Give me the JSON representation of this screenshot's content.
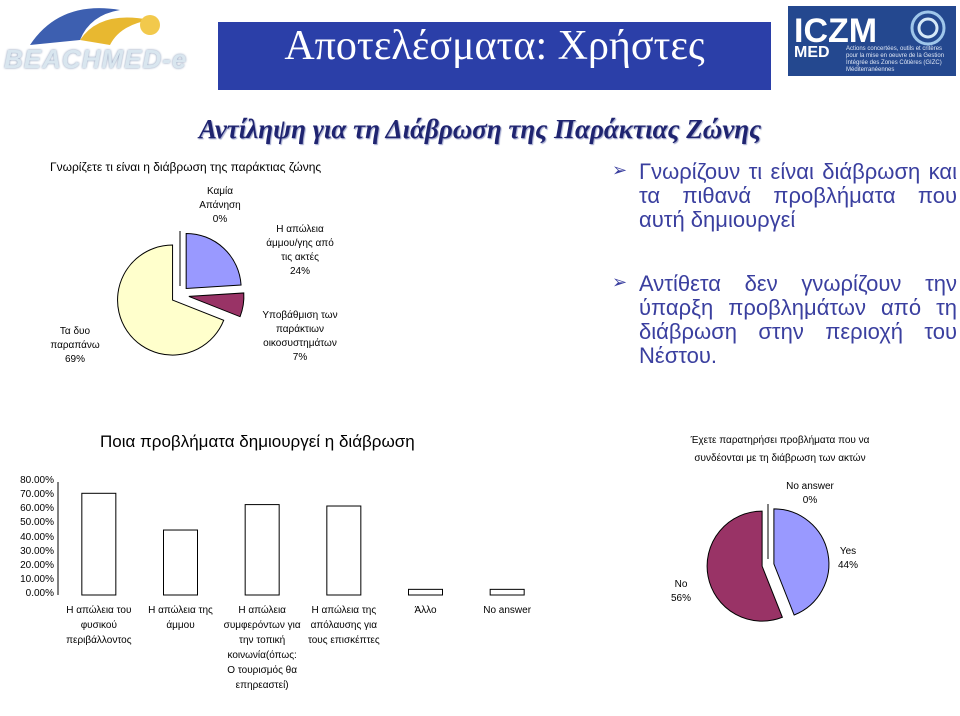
{
  "header": {
    "left_logo_text": "BEACHMED-e",
    "title": "Αποτελέσματα: Χρήστες",
    "right_logo_text": "ICZM",
    "right_logo_sub": "MED",
    "right_logo_caption": "Actions concertées, outils et critères pour la mise en oeuvre de la Gestion Intégrée des Zones Côtières (GIZC) Méditerranéennes"
  },
  "subtitle": "Αντίληψη για τη Διάβρωση της Παράκτιας Ζώνης",
  "pie1": {
    "title": "Γνωρίζετε τι είναι η διάβρωση της παράκτιας ζώνης",
    "labels": {
      "none": [
        "Καμία",
        "Απάνηση",
        "0%"
      ],
      "sand": [
        "Η απώλεια",
        "άμμου/γης από",
        "τις ακτές",
        "24%"
      ],
      "eco": [
        "Υποβάθμιση των",
        "παράκτιων",
        "οικοσυστημάτων",
        "7%"
      ],
      "both": [
        "Τα δυο",
        "παραπάνω",
        "69%"
      ]
    }
  },
  "bullets": [
    "Γνωρίζουν τι είναι διάβρωση και τα πιθανά προβλήματα που αυτή δημιουργεί",
    "Αντίθετα δεν γνωρίζουν την ύπαρξη προβλημάτων από τη διάβρωση στην περιοχή του Νέστου."
  ],
  "chart_data": [
    {
      "type": "pie",
      "title": "Γνωρίζετε τι είναι η διάβρωση της παράκτιας ζώνης",
      "categories": [
        "Καμία Απάνηση",
        "Η απώλεια άμμου/γης από τις ακτές",
        "Υποβάθμιση των παράκτιων οικοσυστημάτων",
        "Τα δυο παραπάνω"
      ],
      "values": [
        0,
        24,
        7,
        69
      ],
      "colors": [
        "#ffffff",
        "#9999ff",
        "#993366",
        "#ffffcc"
      ]
    },
    {
      "type": "bar",
      "title": "Ποια προβλήματα δημιουργεί η διάβρωση",
      "categories": [
        [
          "Η απώλεια του",
          "φυσικού",
          "περιβάλλοντος"
        ],
        [
          "Η απώλεια της",
          "άμμου"
        ],
        [
          "Η απώλεια",
          "συμφερόντων για",
          "την τοπική",
          "κοινωνία(όπως:",
          "Ο τουρισμός θα",
          "επηρεαστεί)"
        ],
        [
          "Η απώλεια της",
          "απόλαυσης για",
          "τους επισκέπτες"
        ],
        [
          "Άλλο"
        ],
        [
          "No answer"
        ]
      ],
      "values": [
        0.72,
        0.46,
        0.64,
        0.63,
        0.04,
        0.04
      ],
      "ylim": [
        0,
        0.8
      ],
      "yticks": [
        "0.00%",
        "10.00%",
        "20.00%",
        "30.00%",
        "40.00%",
        "50.00%",
        "60.00%",
        "70.00%",
        "80.00%"
      ],
      "color": "#ffffff"
    },
    {
      "type": "pie",
      "title": [
        "Έχετε παρατηρήσει προβλήματα που να",
        "συνδέονται με τη διάβρωση των ακτών"
      ],
      "categories": [
        "No answer",
        "Yes",
        "No"
      ],
      "values": [
        0,
        44,
        56
      ],
      "colors": [
        "#ffffff",
        "#9999ff",
        "#993366"
      ],
      "labels": {
        "none": [
          "No answer",
          "0%"
        ],
        "yes": [
          "Yes",
          "44%"
        ],
        "no": [
          "No",
          "56%"
        ]
      }
    }
  ]
}
